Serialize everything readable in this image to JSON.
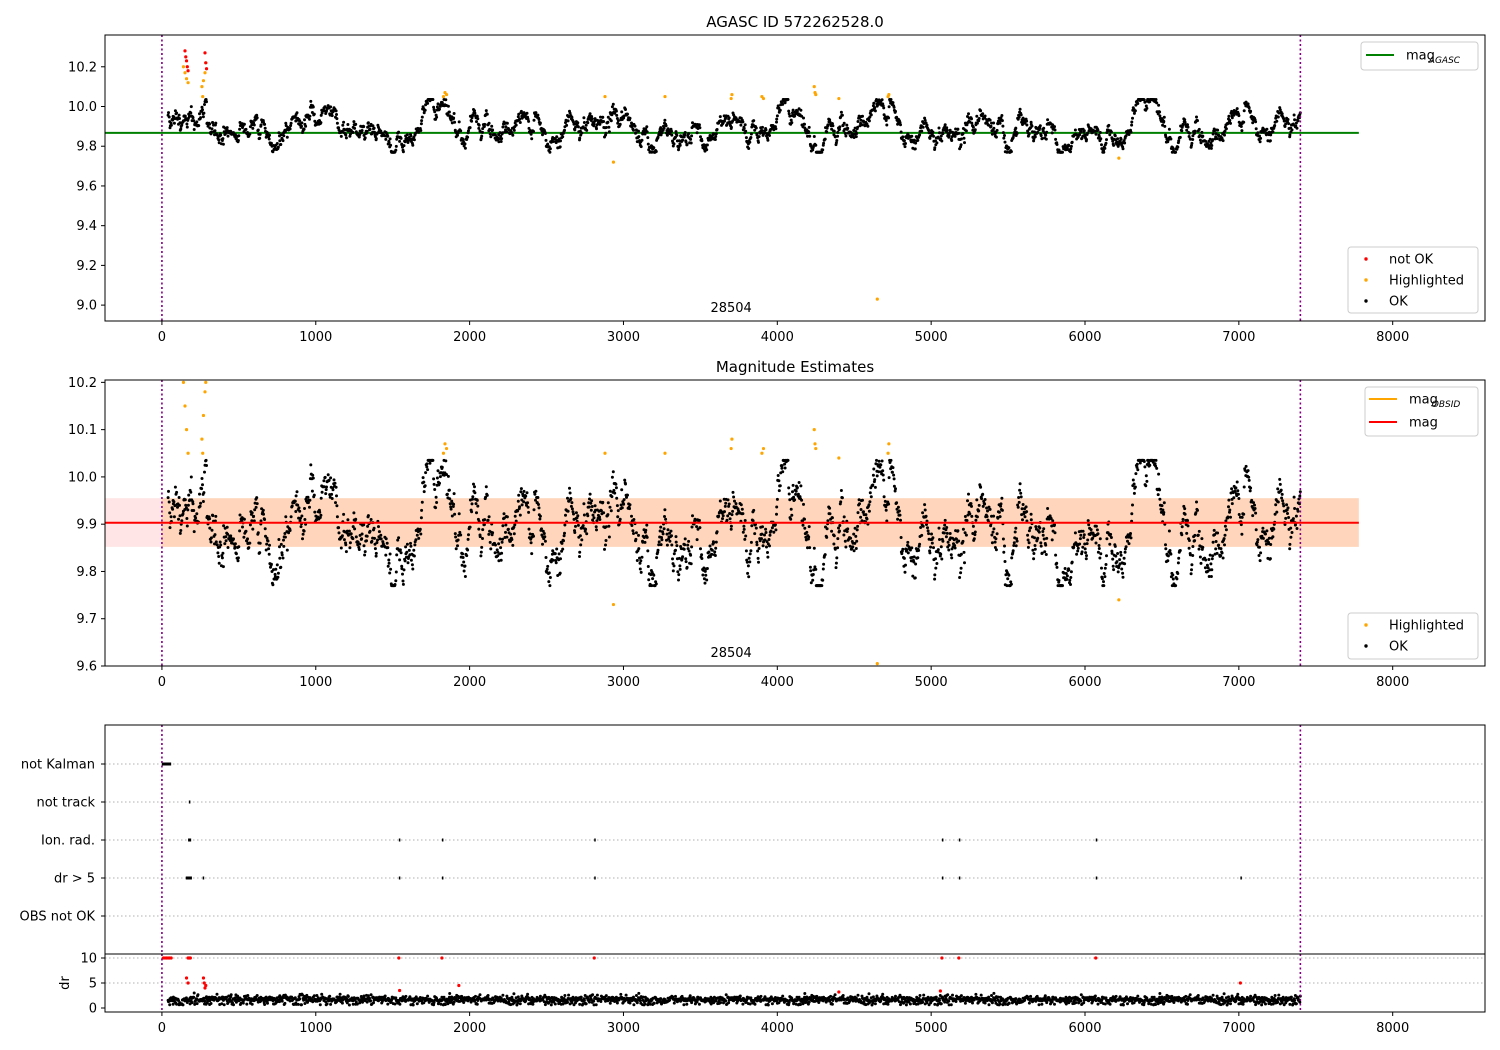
{
  "chart_data": [
    {
      "type": "scatter",
      "title": "AGASC ID 572262528.0",
      "xlabel": "",
      "ylabel": "",
      "xlim": [
        -370,
        8600
      ],
      "ylim": [
        8.92,
        10.36
      ],
      "xticks": [
        0,
        1000,
        2000,
        3000,
        4000,
        5000,
        6000,
        7000,
        8000
      ],
      "yticks": [
        9.0,
        9.2,
        9.4,
        9.6,
        9.8,
        10.0,
        10.2
      ],
      "ytick_labels": [
        "9.0",
        "9.2",
        "9.4",
        "9.6",
        "9.8",
        "10.0",
        "10.2"
      ],
      "vlines": [
        0,
        7400
      ],
      "obsid_labels": [
        {
          "x": 3700,
          "text": "28504"
        }
      ],
      "reference_line": {
        "name": "mag",
        "subscript": "AGASC",
        "y": 9.867,
        "x_range": [
          -370,
          7780
        ],
        "color": "#008000"
      },
      "legend_lines": [
        {
          "name": "mag",
          "subscript": "AGASC",
          "color": "#008000"
        }
      ],
      "legend_points": [
        {
          "name": "not OK",
          "color": "#ff0000"
        },
        {
          "name": "Highlighted",
          "color": "#ffa500"
        },
        {
          "name": "OK",
          "color": "#000000"
        }
      ],
      "legend_placement": [
        "top-right",
        "bottom-right"
      ],
      "series": [
        {
          "name": "OK",
          "color": "#000000",
          "x_range": [
            40,
            7400
          ],
          "count": 2300,
          "trend": "mag ~9.78-10.03, mean ~9.90"
        },
        {
          "name": "Highlighted",
          "color": "#ffa500",
          "points": [
            [
              140,
              10.2
            ],
            [
              150,
              10.17
            ],
            [
              160,
              10.14
            ],
            [
              170,
              10.12
            ],
            [
              260,
              10.1
            ],
            [
              265,
              10.05
            ],
            [
              270,
              10.13
            ],
            [
              280,
              10.17
            ],
            [
              285,
              10.22
            ],
            [
              1830,
              10.05
            ],
            [
              1840,
              10.07
            ],
            [
              1850,
              10.06
            ],
            [
              2880,
              10.05
            ],
            [
              2935,
              9.72
            ],
            [
              3270,
              10.05
            ],
            [
              3700,
              10.04
            ],
            [
              3705,
              10.06
            ],
            [
              3900,
              10.05
            ],
            [
              3910,
              10.04
            ],
            [
              4240,
              10.1
            ],
            [
              4245,
              10.07
            ],
            [
              4250,
              10.06
            ],
            [
              4400,
              10.04
            ],
            [
              4650,
              9.03
            ],
            [
              4720,
              10.05
            ],
            [
              4725,
              10.06
            ],
            [
              6220,
              9.74
            ]
          ]
        },
        {
          "name": "not OK",
          "color": "#ff0000",
          "points": [
            [
              150,
              10.28
            ],
            [
              155,
              10.25
            ],
            [
              160,
              10.23
            ],
            [
              165,
              10.2
            ],
            [
              170,
              10.18
            ],
            [
              280,
              10.27
            ],
            [
              285,
              10.22
            ],
            [
              290,
              10.19
            ]
          ]
        }
      ]
    },
    {
      "type": "scatter",
      "title": "Magnitude Estimates",
      "xlabel": "",
      "ylabel": "",
      "xlim": [
        -370,
        8600
      ],
      "ylim": [
        9.6,
        10.205
      ],
      "xticks": [
        0,
        1000,
        2000,
        3000,
        4000,
        5000,
        6000,
        7000,
        8000
      ],
      "yticks": [
        9.6,
        9.7,
        9.8,
        9.9,
        10.0,
        10.1,
        10.2
      ],
      "ytick_labels": [
        "9.6",
        "9.7",
        "9.8",
        "9.9",
        "10.0",
        "10.1",
        "10.2"
      ],
      "vlines": [
        0,
        7400
      ],
      "obsid_labels": [
        {
          "x": 3700,
          "text": "28504"
        }
      ],
      "mag_line": {
        "name": "mag",
        "y": 9.903,
        "color": "#ff0000"
      },
      "mag_obsid": {
        "name": "mag",
        "subscript": "OBSID",
        "y": 9.903,
        "band": [
          9.852,
          9.955
        ],
        "color": "#ffa500"
      },
      "legend_lines": [
        {
          "name": "mag",
          "subscript": "OBSID",
          "color": "#ffa500"
        },
        {
          "name": "mag",
          "color": "#ff0000"
        }
      ],
      "legend_points": [
        {
          "name": "Highlighted",
          "color": "#ffa500"
        },
        {
          "name": "OK",
          "color": "#000000"
        }
      ],
      "legend_placement": [
        "top-right",
        "bottom-right"
      ],
      "series": [
        {
          "name": "OK",
          "color": "#000000",
          "x_range": [
            40,
            7400
          ],
          "count": 2300,
          "trend": "mag ~9.78-10.03, mean ~9.90"
        },
        {
          "name": "Highlighted",
          "color": "#ffa500",
          "points": [
            [
              140,
              10.2
            ],
            [
              150,
              10.15
            ],
            [
              160,
              10.1
            ],
            [
              170,
              10.05
            ],
            [
              260,
              10.08
            ],
            [
              265,
              10.05
            ],
            [
              270,
              10.13
            ],
            [
              280,
              10.18
            ],
            [
              285,
              10.2
            ],
            [
              1830,
              10.05
            ],
            [
              1840,
              10.07
            ],
            [
              1850,
              10.06
            ],
            [
              2880,
              10.05
            ],
            [
              2935,
              9.73
            ],
            [
              3270,
              10.05
            ],
            [
              3700,
              10.06
            ],
            [
              3705,
              10.08
            ],
            [
              3900,
              10.05
            ],
            [
              3910,
              10.06
            ],
            [
              4240,
              10.1
            ],
            [
              4245,
              10.07
            ],
            [
              4250,
              10.06
            ],
            [
              4400,
              10.04
            ],
            [
              4650,
              9.605
            ],
            [
              4720,
              10.05
            ],
            [
              4725,
              10.07
            ],
            [
              6220,
              9.74
            ]
          ]
        }
      ]
    },
    {
      "type": "scatter",
      "title": "",
      "xlabel": "",
      "ylabel": "",
      "xlim": [
        -370,
        8600
      ],
      "categories": [
        "not Kalman",
        "not track",
        "Ion. rad.",
        "dr > 5",
        "OBS not OK"
      ],
      "vlines": [
        0,
        7400
      ],
      "flags": {
        "not Kalman": [
          [
            0,
            60
          ]
        ],
        "not track": [
          [
            175,
            185
          ]
        ],
        "Ion. rad.": [
          [
            170,
            190
          ],
          [
            1540,
            1545
          ],
          [
            1820,
            1825
          ],
          [
            2810,
            2815
          ],
          [
            5070,
            5075
          ],
          [
            5180,
            5185
          ],
          [
            6070,
            6075
          ]
        ],
        "dr > 5": [
          [
            155,
            195
          ],
          [
            265,
            270
          ],
          [
            1540,
            1545
          ],
          [
            1820,
            1825
          ],
          [
            2810,
            2815
          ],
          [
            5070,
            5075
          ],
          [
            5180,
            5185
          ],
          [
            6070,
            6075
          ],
          [
            7010,
            7015
          ]
        ],
        "OBS not OK": []
      }
    },
    {
      "type": "scatter",
      "title": "",
      "xlabel": "",
      "ylabel": "dr",
      "xlim": [
        -370,
        8600
      ],
      "ylim": [
        -0.8,
        10.8
      ],
      "yticks": [
        0,
        5,
        10
      ],
      "ytick_labels": [
        "0",
        "5",
        "10"
      ],
      "vlines": [
        0,
        7400
      ],
      "series": [
        {
          "name": "OK",
          "color": "#000000",
          "x_range": [
            40,
            7400
          ],
          "count": 2300,
          "trend": "dr ~0.3-3.0"
        },
        {
          "name": "not OK",
          "color": "#ff0000",
          "points": [
            [
              10,
              10
            ],
            [
              20,
              10
            ],
            [
              30,
              10
            ],
            [
              40,
              10
            ],
            [
              50,
              10
            ],
            [
              60,
              10
            ],
            [
              170,
              10
            ],
            [
              175,
              10
            ],
            [
              180,
              10
            ],
            [
              185,
              10
            ],
            [
              160,
              6
            ],
            [
              170,
              5
            ],
            [
              270,
              6
            ],
            [
              275,
              5
            ],
            [
              280,
              4
            ],
            [
              285,
              4.5
            ],
            [
              1540,
              10
            ],
            [
              1820,
              10
            ],
            [
              2810,
              10
            ],
            [
              5070,
              10
            ],
            [
              5180,
              10
            ],
            [
              6070,
              10
            ],
            [
              7010,
              5
            ],
            [
              1930,
              4.5
            ],
            [
              1545,
              3.5
            ],
            [
              4400,
              3.2
            ],
            [
              5060,
              3.4
            ]
          ]
        }
      ]
    }
  ]
}
